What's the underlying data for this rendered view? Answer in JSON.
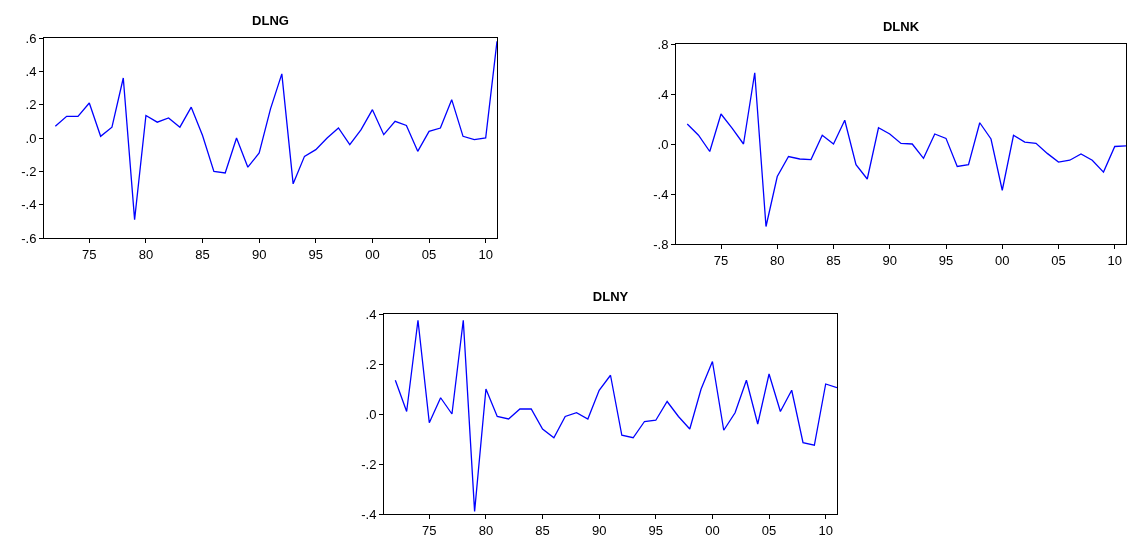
{
  "chart_data": [
    {
      "type": "line",
      "title": "DLNG",
      "x": [
        1972,
        1973,
        1974,
        1975,
        1976,
        1977,
        1978,
        1979,
        1980,
        1981,
        1982,
        1983,
        1984,
        1985,
        1986,
        1987,
        1988,
        1989,
        1990,
        1991,
        1992,
        1993,
        1994,
        1995,
        1996,
        1997,
        1998,
        1999,
        2000,
        2001,
        2002,
        2003,
        2004,
        2005,
        2006,
        2007,
        2008,
        2009,
        2010,
        2011
      ],
      "series": [
        {
          "color": "#0000ff",
          "values": [
            0.07,
            0.13,
            0.13,
            0.21,
            0.01,
            0.065,
            0.36,
            -0.49,
            0.135,
            0.095,
            0.12,
            0.065,
            0.185,
            0.015,
            -0.2,
            -0.21,
            0.0,
            -0.175,
            -0.09,
            0.175,
            0.385,
            -0.275,
            -0.11,
            -0.07,
            0.0,
            0.06,
            -0.04,
            0.05,
            0.17,
            0.02,
            0.1,
            0.075,
            -0.08,
            0.04,
            0.06,
            0.23,
            0.01,
            -0.01,
            0.0,
            0.58
          ]
        }
      ],
      "xlim": [
        1971,
        2011
      ],
      "ylim": [
        -0.6,
        0.6
      ],
      "xticks": [
        {
          "value": 1975,
          "label": "75"
        },
        {
          "value": 1980,
          "label": "80"
        },
        {
          "value": 1985,
          "label": "85"
        },
        {
          "value": 1990,
          "label": "90"
        },
        {
          "value": 1995,
          "label": "95"
        },
        {
          "value": 2000,
          "label": "00"
        },
        {
          "value": 2005,
          "label": "05"
        },
        {
          "value": 2010,
          "label": "10"
        }
      ],
      "yticks": [
        {
          "value": -0.6,
          "label": "-.6"
        },
        {
          "value": -0.4,
          "label": "-.4"
        },
        {
          "value": -0.2,
          "label": "-.2"
        },
        {
          "value": 0,
          "label": ".0"
        },
        {
          "value": 0.2,
          "label": ".2"
        },
        {
          "value": 0.4,
          "label": ".4"
        },
        {
          "value": 0.6,
          "label": ".6"
        }
      ]
    },
    {
      "type": "line",
      "title": "DLNK",
      "x": [
        1972,
        1973,
        1974,
        1975,
        1976,
        1977,
        1978,
        1979,
        1980,
        1981,
        1982,
        1983,
        1984,
        1985,
        1986,
        1987,
        1988,
        1989,
        1990,
        1991,
        1992,
        1993,
        1994,
        1995,
        1996,
        1997,
        1998,
        1999,
        2000,
        2001,
        2002,
        2003,
        2004,
        2005,
        2006,
        2007,
        2008,
        2009,
        2010,
        2011
      ],
      "series": [
        {
          "color": "#0000ff",
          "values": [
            0.16,
            0.07,
            -0.06,
            0.24,
            0.125,
            0.0,
            0.57,
            -0.66,
            -0.26,
            -0.1,
            -0.12,
            -0.125,
            0.07,
            0.0,
            0.19,
            -0.165,
            -0.28,
            0.13,
            0.08,
            0.005,
            0.0,
            -0.115,
            0.08,
            0.045,
            -0.18,
            -0.165,
            0.17,
            0.04,
            -0.37,
            0.07,
            0.015,
            0.005,
            -0.075,
            -0.145,
            -0.13,
            -0.08,
            -0.13,
            -0.225,
            -0.02,
            -0.015
          ]
        }
      ],
      "xlim": [
        1971,
        2011
      ],
      "ylim": [
        -0.8,
        0.8
      ],
      "xticks": [
        {
          "value": 1975,
          "label": "75"
        },
        {
          "value": 1980,
          "label": "80"
        },
        {
          "value": 1985,
          "label": "85"
        },
        {
          "value": 1990,
          "label": "90"
        },
        {
          "value": 1995,
          "label": "95"
        },
        {
          "value": 2000,
          "label": "00"
        },
        {
          "value": 2005,
          "label": "05"
        },
        {
          "value": 2010,
          "label": "10"
        }
      ],
      "yticks": [
        {
          "value": -0.8,
          "label": "-.8"
        },
        {
          "value": -0.4,
          "label": "-.4"
        },
        {
          "value": 0,
          "label": ".0"
        },
        {
          "value": 0.4,
          "label": ".4"
        },
        {
          "value": 0.8,
          "label": ".8"
        }
      ]
    },
    {
      "type": "line",
      "title": "DLNY",
      "x": [
        1972,
        1973,
        1974,
        1975,
        1976,
        1977,
        1978,
        1979,
        1980,
        1981,
        1982,
        1983,
        1984,
        1985,
        1986,
        1987,
        1988,
        1989,
        1990,
        1991,
        1992,
        1993,
        1994,
        1995,
        1996,
        1997,
        1998,
        1999,
        2000,
        2001,
        2002,
        2003,
        2004,
        2005,
        2006,
        2007,
        2008,
        2009,
        2010,
        2011
      ],
      "series": [
        {
          "color": "#0000ff",
          "values": [
            0.135,
            0.01,
            0.375,
            -0.035,
            0.065,
            0.0,
            0.375,
            -0.39,
            0.1,
            -0.01,
            -0.02,
            0.02,
            0.02,
            -0.06,
            -0.095,
            -0.01,
            0.005,
            -0.02,
            0.095,
            0.155,
            -0.085,
            -0.095,
            -0.03,
            -0.025,
            0.05,
            -0.01,
            -0.06,
            0.1,
            0.21,
            -0.065,
            0.005,
            0.135,
            -0.04,
            0.16,
            0.01,
            0.095,
            -0.115,
            -0.125,
            0.12,
            0.105
          ]
        }
      ],
      "xlim": [
        1971,
        2011
      ],
      "ylim": [
        -0.4,
        0.4
      ],
      "xticks": [
        {
          "value": 1975,
          "label": "75"
        },
        {
          "value": 1980,
          "label": "80"
        },
        {
          "value": 1985,
          "label": "85"
        },
        {
          "value": 1990,
          "label": "90"
        },
        {
          "value": 1995,
          "label": "95"
        },
        {
          "value": 2000,
          "label": "00"
        },
        {
          "value": 2005,
          "label": "05"
        },
        {
          "value": 2010,
          "label": "10"
        }
      ],
      "yticks": [
        {
          "value": -0.4,
          "label": "-.4"
        },
        {
          "value": -0.2,
          "label": "-.2"
        },
        {
          "value": 0,
          "label": ".0"
        },
        {
          "value": 0.2,
          "label": ".2"
        },
        {
          "value": 0.4,
          "label": ".4"
        }
      ]
    }
  ]
}
